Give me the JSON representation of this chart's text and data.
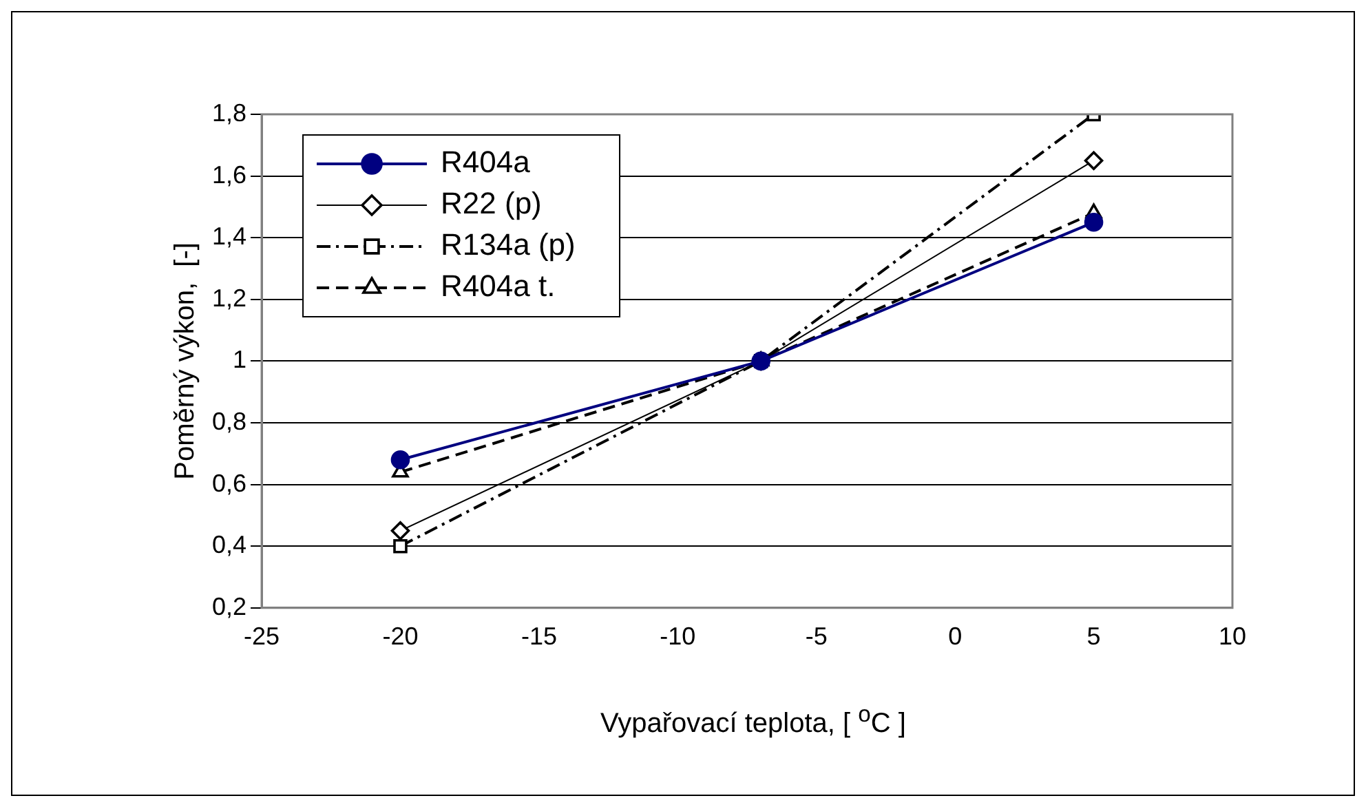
{
  "chart_data": {
    "type": "line",
    "xlabel": "Vypařovací teplota, [ $^{o}$C ]",
    "ylabel": "Poměrný výkon,  [-]",
    "x": [
      -20,
      -7,
      5
    ],
    "series": [
      {
        "name": "R404a",
        "color": "#000080",
        "values": [
          0.68,
          1,
          1.45
        ],
        "marker": "circle",
        "line_style": "solid"
      },
      {
        "name": "R22 (p)",
        "color": "#000000",
        "values": [
          0.45,
          1,
          1.65
        ],
        "marker": "diamond",
        "line_style": "solid"
      },
      {
        "name": "R134a (p)",
        "color": "#000000",
        "values": [
          0.4,
          1,
          1.8
        ],
        "marker": "square",
        "line_style": "dashed"
      },
      {
        "name": "R404a t.",
        "color": "#000000",
        "values": [
          0.64,
          1,
          1.48
        ],
        "marker": "triangle",
        "line_style": "dashed"
      }
    ],
    "xlim": [
      -25,
      10
    ],
    "xticks": [
      -25,
      -20,
      -15,
      -10,
      -5,
      0,
      5,
      10
    ],
    "ylim": [
      0.2,
      1.8
    ],
    "yticks": [
      {
        "value": 0.2,
        "label": "0,2"
      },
      {
        "value": 0.4,
        "label": "0,4"
      },
      {
        "value": 0.6,
        "label": "0,6"
      },
      {
        "value": 0.8,
        "label": "0,8"
      },
      1,
      {
        "value": 1.2,
        "label": "1,2"
      },
      {
        "value": 1.4,
        "label": "1,4"
      },
      {
        "value": 1.6,
        "label": "1,6"
      },
      {
        "value": 1.8,
        "label": "1,8"
      }
    ],
    "grid": "y",
    "legend": "top left"
  }
}
